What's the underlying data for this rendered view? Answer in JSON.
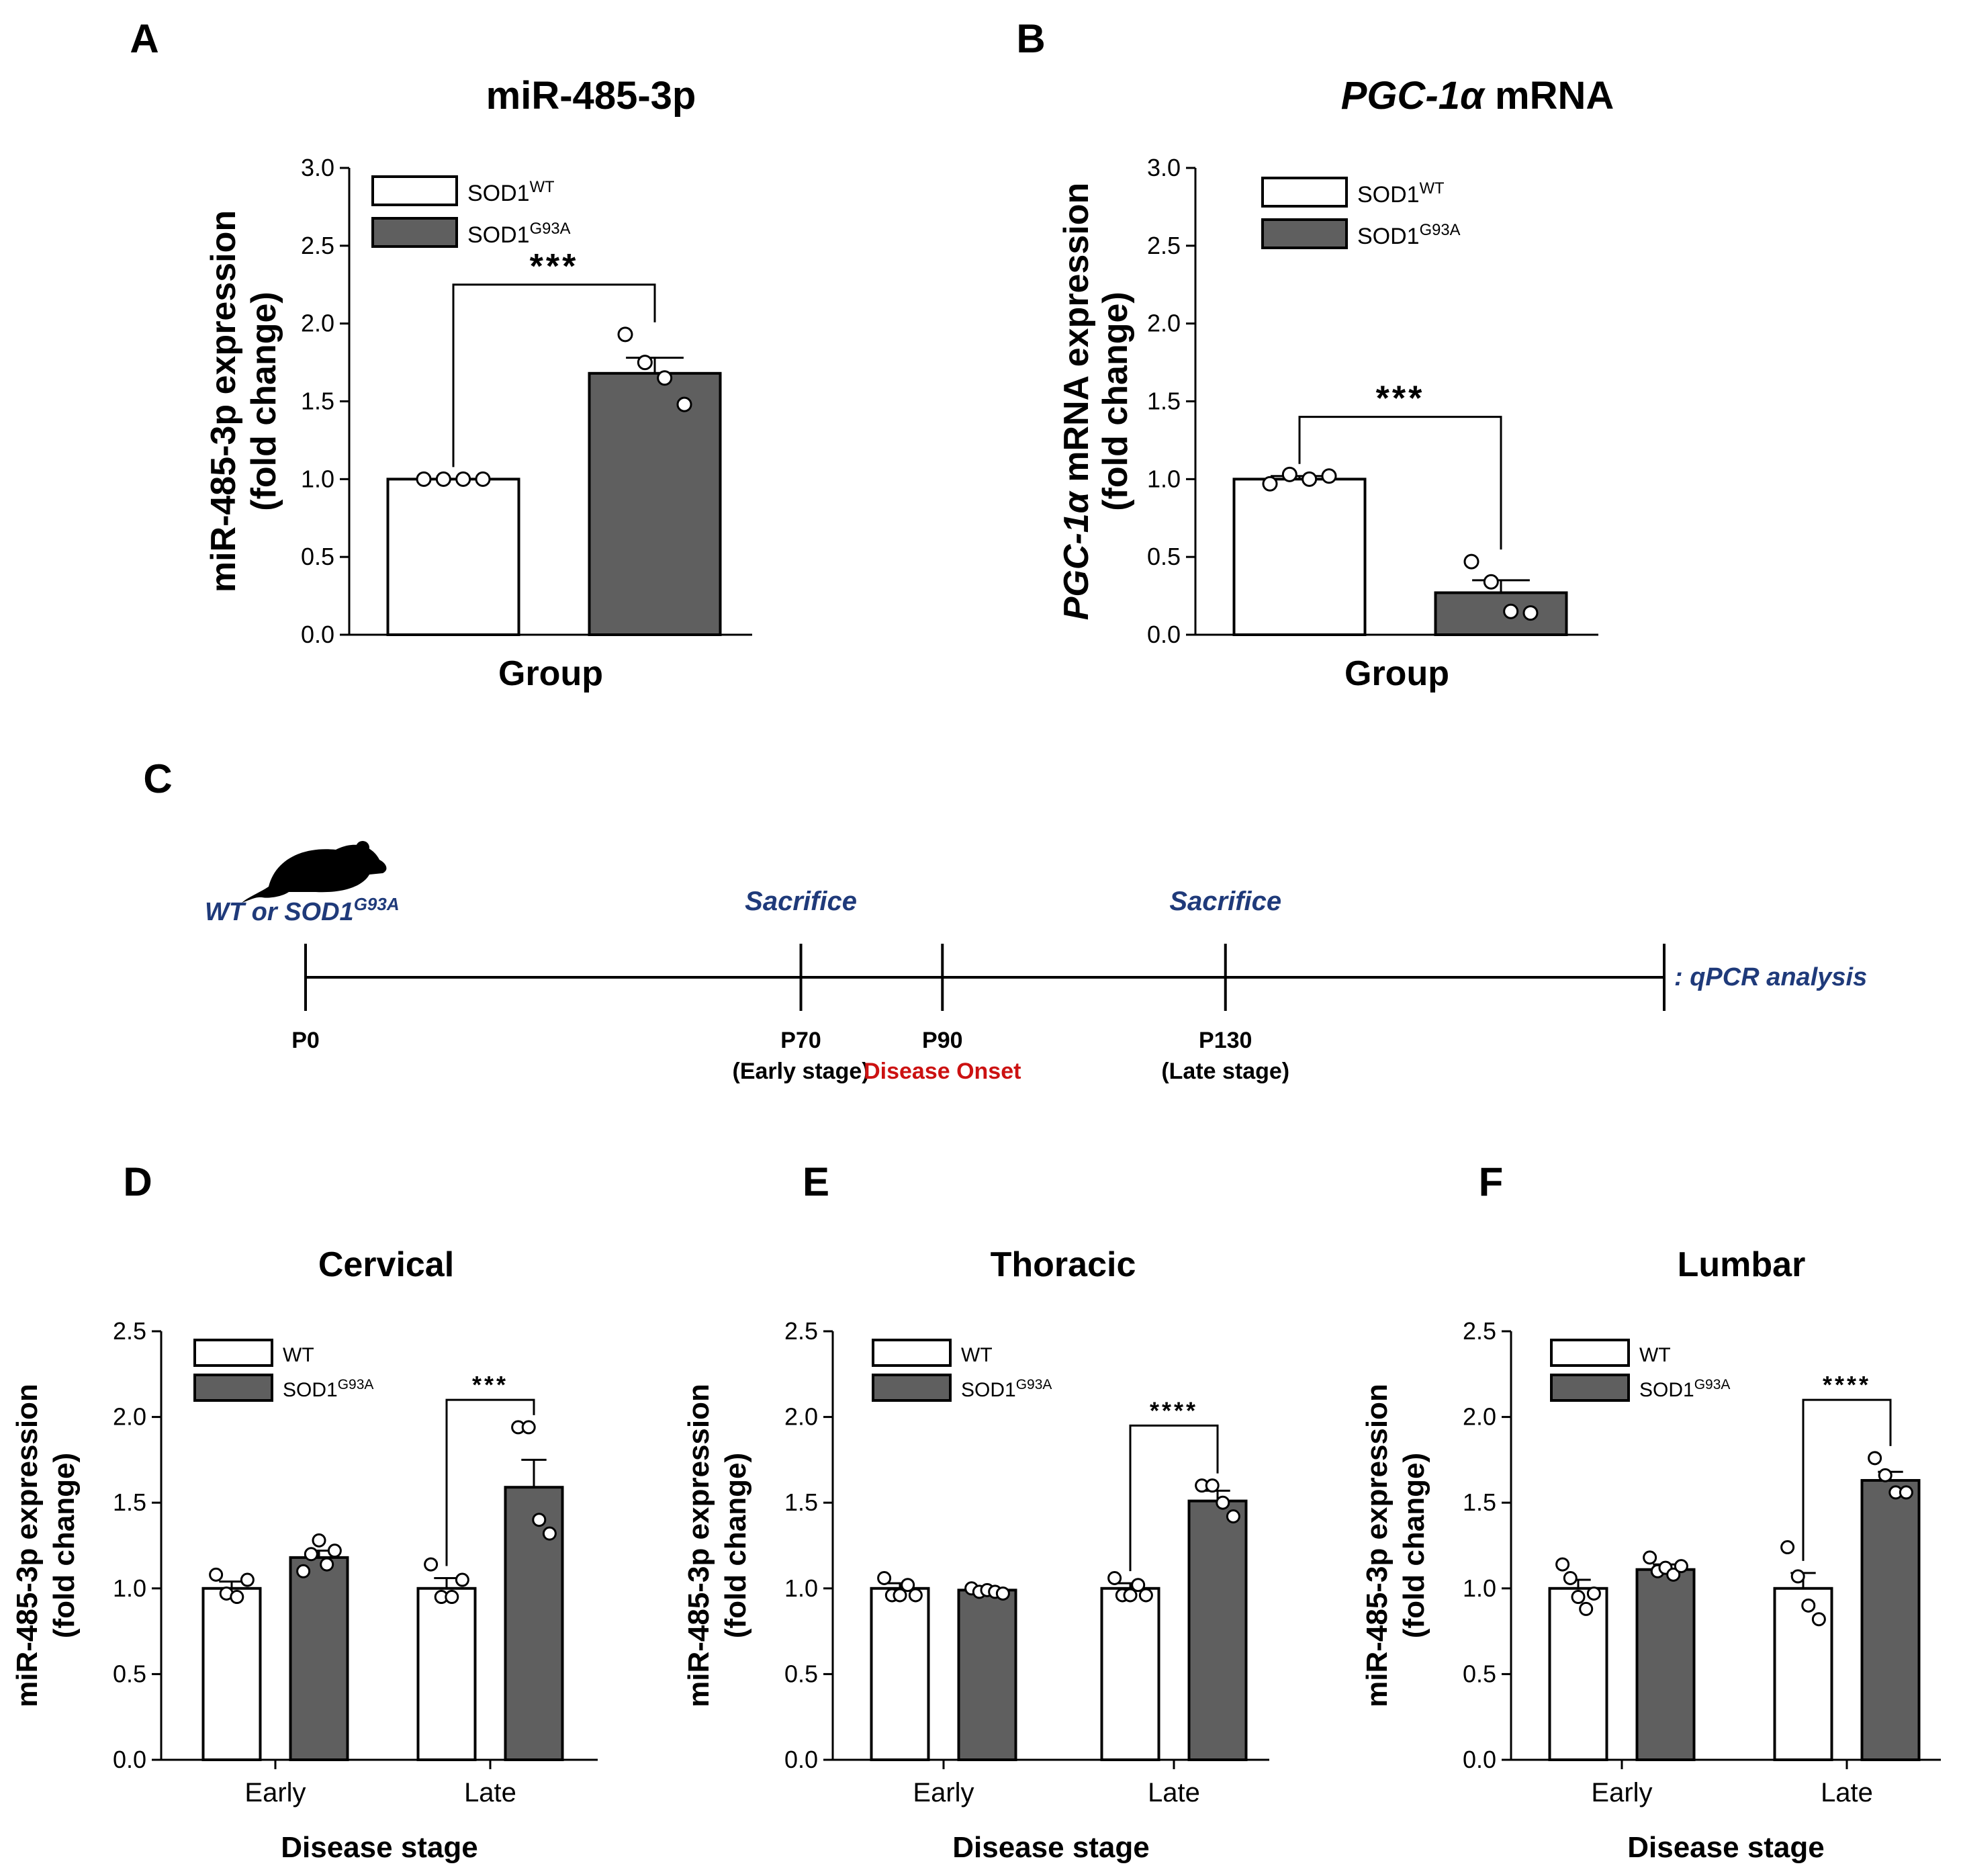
{
  "chart_data": [
    {
      "panel": "A",
      "type": "bar",
      "title": "miR-485-3p",
      "ylabel_line1": "miR-485-3p expression",
      "ylabel_line2": "(fold change)",
      "xlabel": "Group",
      "ylim": [
        0,
        3.0
      ],
      "yticks": [
        "0.0",
        "0.5",
        "1.0",
        "1.5",
        "2.0",
        "2.5",
        "3.0"
      ],
      "categories": [
        ""
      ],
      "legend": [
        {
          "base": "SOD1",
          "sup": "WT"
        },
        {
          "base": "SOD1",
          "sup": "G93A"
        }
      ],
      "series": [
        {
          "name": "SOD1WT",
          "values": [
            1.0
          ],
          "sem": [
            0.0
          ],
          "points": [
            [
              1.0,
              1.0,
              1.0,
              1.0
            ]
          ]
        },
        {
          "name": "SOD1G93A",
          "values": [
            1.68
          ],
          "sem": [
            0.1
          ],
          "points": [
            [
              1.93,
              1.75,
              1.65,
              1.48
            ]
          ]
        }
      ],
      "significance": [
        {
          "label": "***",
          "y": 2.25
        }
      ]
    },
    {
      "panel": "B",
      "type": "bar",
      "title_italic": "PGC-1α",
      "title_rest": " mRNA",
      "ylabel_line1_italic": "PGC-1α",
      "ylabel_line1_rest": " mRNA expression",
      "ylabel_line2": "(fold change)",
      "xlabel": "Group",
      "ylim": [
        0,
        3.0
      ],
      "yticks": [
        "0.0",
        "0.5",
        "1.0",
        "1.5",
        "2.0",
        "2.5",
        "3.0"
      ],
      "categories": [
        ""
      ],
      "legend": [
        {
          "base": "SOD1",
          "sup": "WT"
        },
        {
          "base": "SOD1",
          "sup": "G93A"
        }
      ],
      "series": [
        {
          "name": "SOD1WT",
          "values": [
            1.0
          ],
          "sem": [
            0.02
          ],
          "points": [
            [
              0.97,
              1.03,
              1.0,
              1.02
            ]
          ]
        },
        {
          "name": "SOD1G93A",
          "values": [
            0.27
          ],
          "sem": [
            0.08
          ],
          "points": [
            [
              0.47,
              0.34,
              0.15,
              0.14
            ]
          ]
        }
      ],
      "significance": [
        {
          "label": "***",
          "y": 1.4
        }
      ]
    },
    {
      "panel": "D",
      "type": "bar",
      "title": "Cervical",
      "ylabel_line1": "miR-485-3p expression",
      "ylabel_line2": "(fold change)",
      "xlabel": "Disease stage",
      "ylim": [
        0,
        2.5
      ],
      "yticks": [
        "0.0",
        "0.5",
        "1.0",
        "1.5",
        "2.0",
        "2.5"
      ],
      "categories": [
        "Early",
        "Late"
      ],
      "legend": [
        {
          "base": "WT",
          "sup": ""
        },
        {
          "base": "SOD1",
          "sup": "G93A"
        }
      ],
      "series": [
        {
          "name": "WT",
          "values": [
            1.0,
            1.0
          ],
          "sem": [
            0.04,
            0.06
          ],
          "points": [
            [
              1.08,
              0.97,
              0.95,
              1.05
            ],
            [
              1.14,
              0.95,
              0.95,
              1.05
            ]
          ]
        },
        {
          "name": "SOD1G93A",
          "values": [
            1.18,
            1.59
          ],
          "sem": [
            0.04,
            0.16
          ],
          "points": [
            [
              1.1,
              1.2,
              1.28,
              1.14,
              1.22
            ],
            [
              1.94,
              1.94,
              1.4,
              1.32
            ]
          ]
        }
      ],
      "significance": [
        {
          "label": "***",
          "y": 2.1,
          "category": 1
        }
      ]
    },
    {
      "panel": "E",
      "type": "bar",
      "title": "Thoracic",
      "ylabel_line1": "miR-485-3p expression",
      "ylabel_line2": "(fold change)",
      "xlabel": "Disease stage",
      "ylim": [
        0,
        2.5
      ],
      "yticks": [
        "0.0",
        "0.5",
        "1.0",
        "1.5",
        "2.0",
        "2.5"
      ],
      "categories": [
        "Early",
        "Late"
      ],
      "legend": [
        {
          "base": "WT",
          "sup": ""
        },
        {
          "base": "SOD1",
          "sup": "G93A"
        }
      ],
      "series": [
        {
          "name": "WT",
          "values": [
            1.0,
            1.0
          ],
          "sem": [
            0.03,
            0.03
          ],
          "points": [
            [
              1.06,
              0.96,
              0.96,
              1.02,
              0.96
            ],
            [
              1.06,
              0.96,
              0.96,
              1.02,
              0.96
            ]
          ]
        },
        {
          "name": "SOD1G93A",
          "values": [
            0.99,
            1.51
          ],
          "sem": [
            0.01,
            0.06
          ],
          "points": [
            [
              1.0,
              0.98,
              0.99,
              0.98,
              0.97
            ],
            [
              1.6,
              1.6,
              1.5,
              1.42
            ]
          ]
        }
      ],
      "significance": [
        {
          "label": "****",
          "y": 1.95,
          "category": 1
        }
      ]
    },
    {
      "panel": "F",
      "type": "bar",
      "title": "Lumbar",
      "ylabel_line1": "miR-485-3p expression",
      "ylabel_line2": "(fold change)",
      "xlabel": "Disease stage",
      "ylim": [
        0,
        2.5
      ],
      "yticks": [
        "0.0",
        "0.5",
        "1.0",
        "1.5",
        "2.0",
        "2.5"
      ],
      "categories": [
        "Early",
        "Late"
      ],
      "legend": [
        {
          "base": "WT",
          "sup": ""
        },
        {
          "base": "SOD1",
          "sup": "G93A"
        }
      ],
      "series": [
        {
          "name": "WT",
          "values": [
            1.0,
            1.0
          ],
          "sem": [
            0.05,
            0.09
          ],
          "points": [
            [
              1.14,
              1.06,
              0.95,
              0.88,
              0.97
            ],
            [
              1.24,
              1.07,
              0.9,
              0.82
            ]
          ]
        },
        {
          "name": "SOD1G93A",
          "values": [
            1.11,
            1.63
          ],
          "sem": [
            0.03,
            0.05
          ],
          "points": [
            [
              1.18,
              1.1,
              1.12,
              1.08,
              1.13
            ],
            [
              1.76,
              1.66,
              1.56,
              1.56
            ]
          ]
        }
      ],
      "significance": [
        {
          "label": "****",
          "y": 2.1,
          "category": 1
        }
      ]
    }
  ],
  "timeline": {
    "panel": "C",
    "start_label": "WT or SOD1",
    "start_label_sup": "G93A",
    "end_label": ": qPCR analysis",
    "sacrifice_label": "Sacrifice",
    "ticks": [
      {
        "day": 0,
        "label": "P0",
        "sub": "",
        "sacrifice": false
      },
      {
        "day": 70,
        "label": "P70",
        "sub": "(Early stage)",
        "sacrifice": true
      },
      {
        "day": 90,
        "label": "P90",
        "sub": "Disease Onset",
        "sub_red": true,
        "sacrifice": false
      },
      {
        "day": 130,
        "label": "P130",
        "sub": "(Late stage)",
        "sacrifice": true
      }
    ],
    "end_day": 192
  },
  "colors": {
    "wt_fill": "#ffffff",
    "mut_fill": "#5f5f5f",
    "axis": "#000000",
    "timeline_blue": "#1f3a7a",
    "onset_red": "#cc1111"
  }
}
